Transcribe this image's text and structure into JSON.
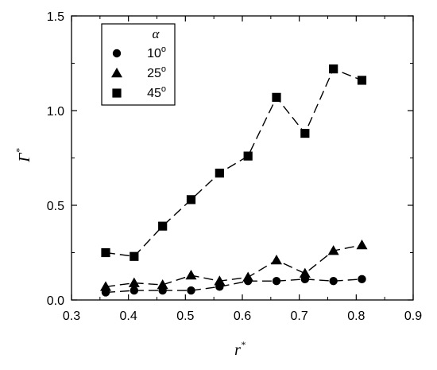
{
  "chart_data": {
    "type": "line",
    "xlabel": "r",
    "xlabel_superscript": "*",
    "ylabel": "Γ",
    "ylabel_superscript": "*",
    "xlim": [
      0.3,
      0.9
    ],
    "ylim": [
      0.0,
      1.5
    ],
    "xticks": [
      "0.3",
      "0.4",
      "0.5",
      "0.6",
      "0.7",
      "0.8",
      "0.9"
    ],
    "yticks": [
      "0.0",
      "0.5",
      "1.0",
      "1.5"
    ],
    "grid": false,
    "legend": {
      "title": "α",
      "placement": "top-left"
    },
    "series": [
      {
        "name": "10",
        "name_suffix": "o",
        "marker": "circle",
        "line_style": "dashed",
        "x": [
          0.36,
          0.41,
          0.46,
          0.51,
          0.56,
          0.61,
          0.66,
          0.71,
          0.76,
          0.81
        ],
        "values": [
          0.04,
          0.05,
          0.05,
          0.05,
          0.07,
          0.1,
          0.1,
          0.11,
          0.1,
          0.11
        ]
      },
      {
        "name": "25",
        "name_suffix": "o",
        "marker": "triangle",
        "line_style": "dashed",
        "x": [
          0.36,
          0.41,
          0.46,
          0.51,
          0.56,
          0.61,
          0.66,
          0.71,
          0.76,
          0.81
        ],
        "values": [
          0.07,
          0.09,
          0.08,
          0.13,
          0.1,
          0.12,
          0.21,
          0.14,
          0.26,
          0.29
        ]
      },
      {
        "name": "45",
        "name_suffix": "o",
        "marker": "square",
        "line_style": "dashed",
        "x": [
          0.36,
          0.41,
          0.46,
          0.51,
          0.56,
          0.61,
          0.66,
          0.71,
          0.76,
          0.81
        ],
        "values": [
          0.25,
          0.23,
          0.39,
          0.53,
          0.67,
          0.76,
          1.07,
          0.88,
          1.22,
          1.16
        ]
      }
    ]
  }
}
